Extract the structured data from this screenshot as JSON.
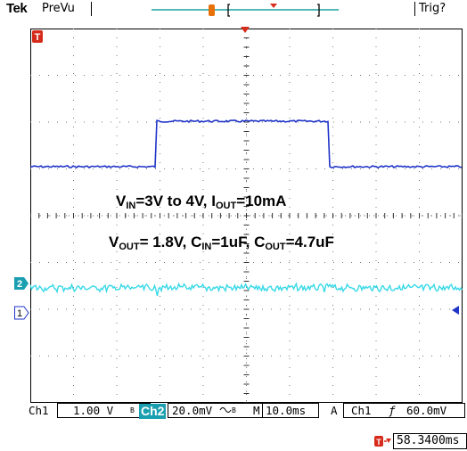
{
  "header": {
    "brand": "Tek",
    "mode": "PreVu",
    "trigger_status": "Trig?"
  },
  "annotations": {
    "line1": {
      "v": "V",
      "v_sub": "IN",
      "text1": "=3V to 4V, I",
      "i_sub": "OUT",
      "text2": "=10mA"
    },
    "line2": {
      "v": "V",
      "v_sub": "OUT",
      "text1": "= 1.8V, C",
      "cin_sub": "IN",
      "text2": "=1uF, C",
      "cout_sub": "OUT",
      "text3": "=4.7uF"
    }
  },
  "channel_markers": {
    "ch2": "2",
    "ch1": "1",
    "trigger_marker": "T"
  },
  "readout": {
    "ch1_label": "Ch1",
    "ch1_scale": "1.00 V",
    "ch1_bw": "B",
    "ch2_label": "Ch2",
    "ch2_scale": "20.0mV",
    "ch2_bw": "B",
    "timebase_prefix": "M",
    "timebase": "10.0ms",
    "trigger_prefix": "A",
    "trigger_source": "Ch1",
    "trigger_slope": "ƒ",
    "trigger_level": "60.0mV"
  },
  "trigger_position": "58.3400ms",
  "colors": {
    "ch1": "#1f34c8",
    "ch2": "#38d9e8",
    "trigger": "#d62b1a",
    "ch2_tag": "#1a9fb0"
  }
}
